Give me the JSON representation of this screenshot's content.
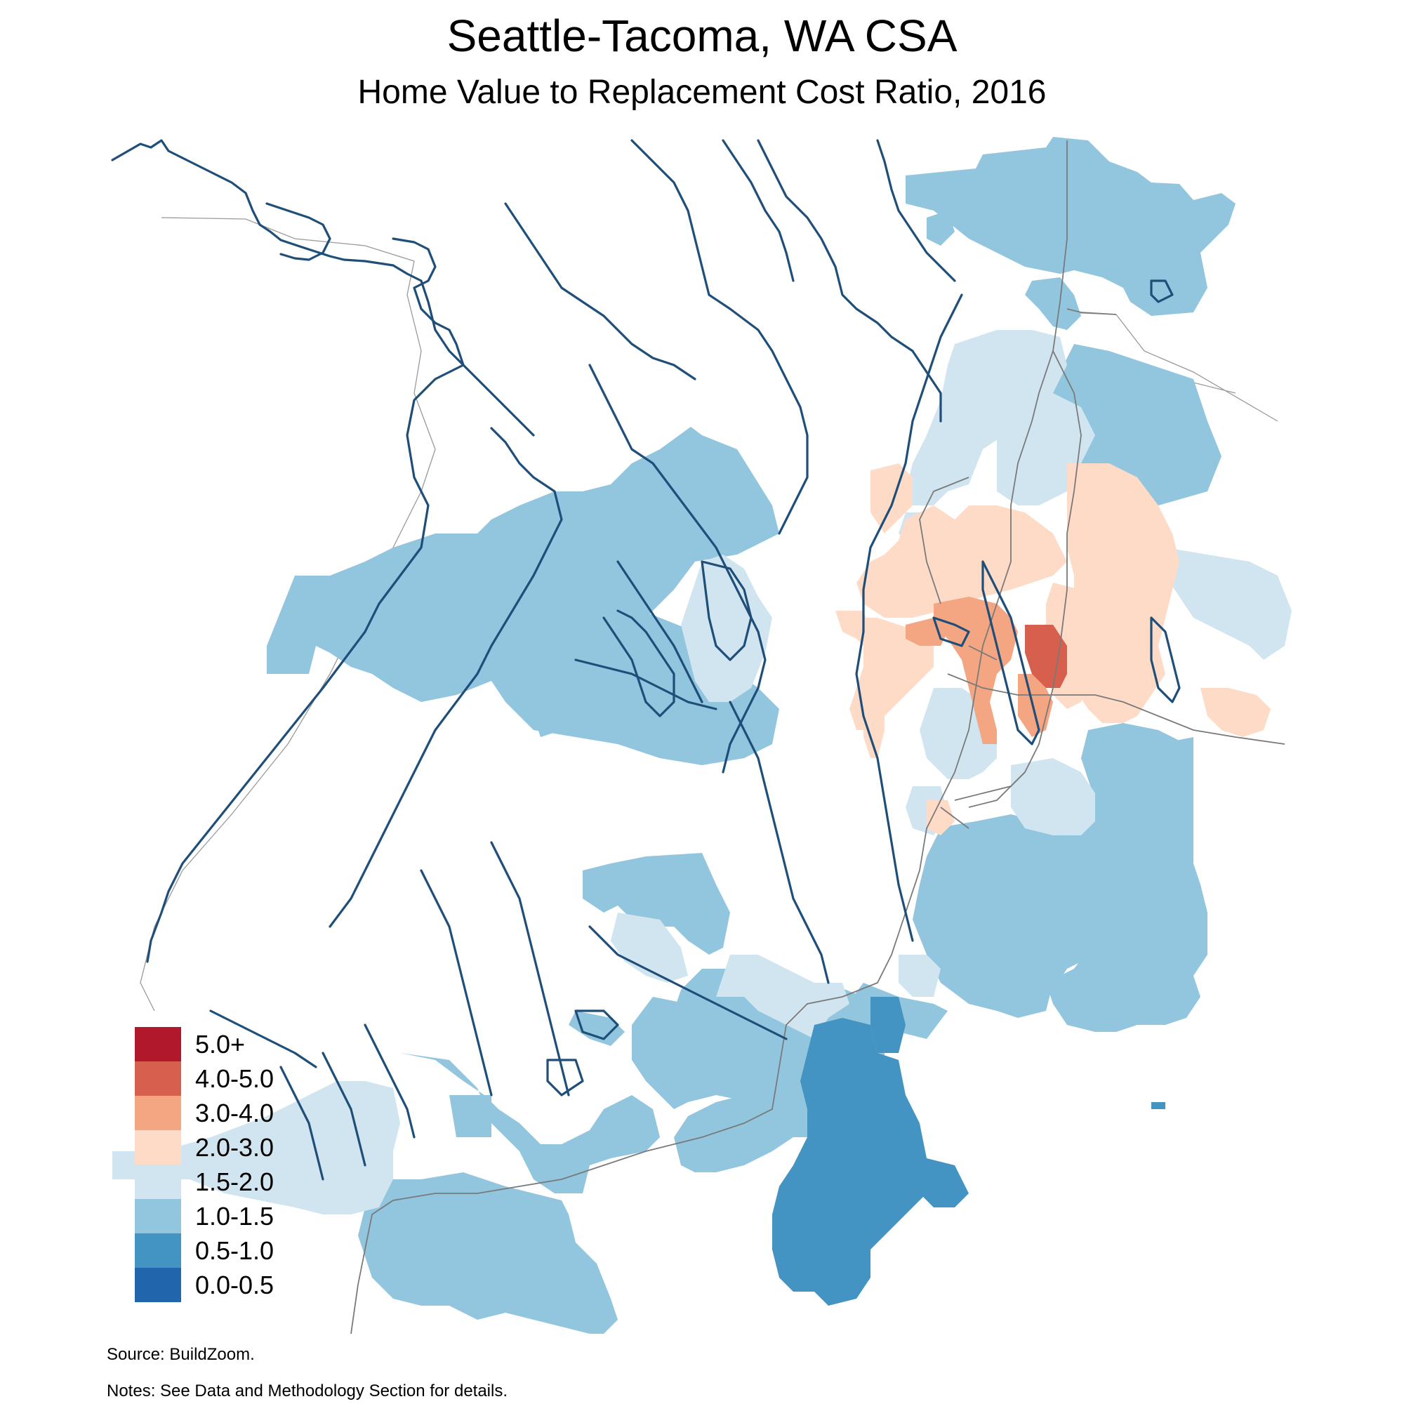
{
  "header": {
    "title": "Seattle-Tacoma, WA CSA",
    "subtitle": "Home Value to Replacement Cost Ratio, 2016"
  },
  "legend": {
    "items": [
      {
        "label": "5.0+",
        "color": "#b2182b"
      },
      {
        "label": "4.0-5.0",
        "color": "#d6604d"
      },
      {
        "label": "3.0-4.0",
        "color": "#f4a582"
      },
      {
        "label": "2.0-3.0",
        "color": "#fddbc7"
      },
      {
        "label": "1.5-2.0",
        "color": "#d1e5f0"
      },
      {
        "label": "1.0-1.5",
        "color": "#92c5de"
      },
      {
        "label": "0.5-1.0",
        "color": "#4393c3"
      },
      {
        "label": "0.0-0.5",
        "color": "#2166ac"
      }
    ]
  },
  "footer": {
    "source": "Source: BuildZoom.",
    "notes": "Notes: See Data and Methodology Section for details."
  }
}
